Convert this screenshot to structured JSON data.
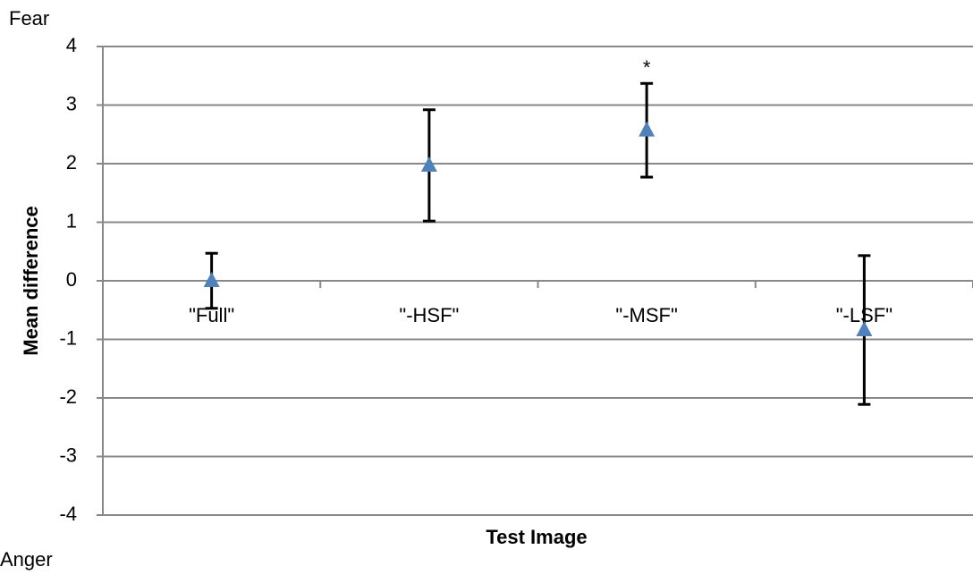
{
  "chart_data": {
    "type": "errorbar",
    "y_label": "Mean difference",
    "x_label": "Test Image",
    "y_top_label": "Fear",
    "y_bottom_label": "Anger",
    "categories": [
      "\"Full\"",
      "\"-HSF\"",
      "\"-MSF\"",
      "\"-LSF\""
    ],
    "values": [
      0,
      1.97,
      2.57,
      -0.84
    ],
    "errors": [
      0.47,
      0.95,
      0.8,
      1.27
    ],
    "value_annotations": [
      null,
      null,
      "*",
      null
    ],
    "color": "#4f81bd",
    "ylim": [
      -4,
      4
    ],
    "yticks": [
      -4,
      -3,
      -2,
      -1,
      0,
      1,
      2,
      3,
      4
    ],
    "grid": true
  }
}
